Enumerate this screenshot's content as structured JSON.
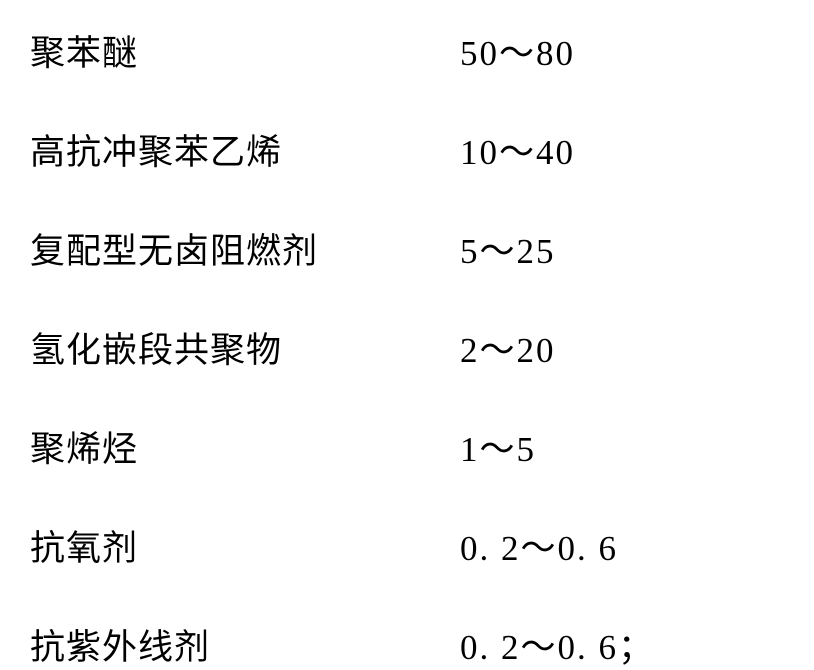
{
  "table": {
    "rows": [
      {
        "label": "聚苯醚",
        "value": "50～80",
        "suffix": ""
      },
      {
        "label": "高抗冲聚苯乙烯",
        "value": "10～40",
        "suffix": ""
      },
      {
        "label": "复配型无卤阻燃剂",
        "value": "5～25",
        "suffix": ""
      },
      {
        "label": "氢化嵌段共聚物",
        "value": "2～20",
        "suffix": ""
      },
      {
        "label": "聚烯烃",
        "value": "1～5",
        "suffix": ""
      },
      {
        "label": "抗氧剂",
        "value": "0. 2～0. 6",
        "suffix": ""
      },
      {
        "label": "抗紫外线剂",
        "value": "0. 2～0. 6",
        "suffix": "；"
      }
    ],
    "label_fontsize": 35,
    "value_fontsize": 35,
    "text_color": "#000000",
    "background_color": "#ffffff",
    "label_column_width": 430,
    "row_gap": 48
  }
}
